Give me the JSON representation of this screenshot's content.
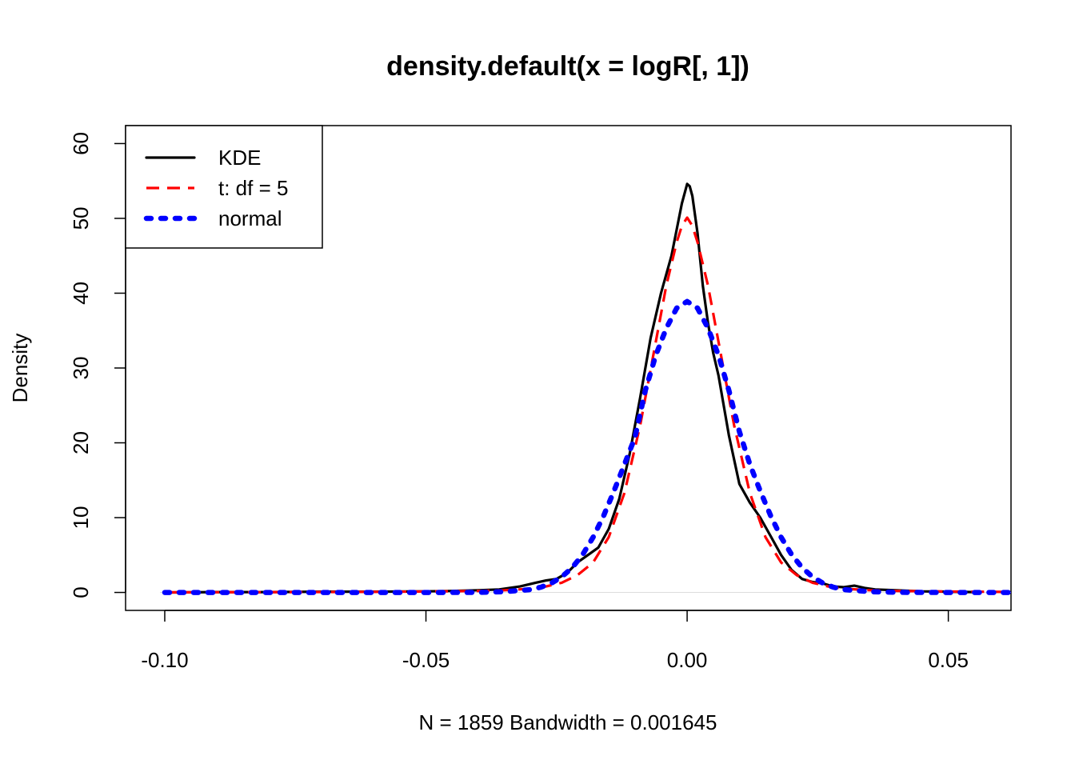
{
  "chart_data": {
    "type": "line",
    "title": "density.default(x = logR[, 1])",
    "xlabel": "N = 1859   Bandwidth = 0.001645",
    "ylabel": "Density",
    "xlim": [
      -0.1075,
      0.062
    ],
    "ylim": [
      -2.4,
      62.4
    ],
    "x_ticks": [
      -0.1,
      -0.05,
      0.0,
      0.05
    ],
    "x_tick_labels": [
      "-0.10",
      "-0.05",
      "0.00",
      "0.05"
    ],
    "y_ticks": [
      0,
      10,
      20,
      30,
      40,
      50,
      60
    ],
    "y_tick_labels": [
      "0",
      "10",
      "20",
      "30",
      "40",
      "50",
      "60"
    ],
    "grid": false,
    "legend_position": "top-left",
    "series": [
      {
        "name": "KDE",
        "color": "#000000",
        "style": "solid",
        "x": [
          -0.1,
          -0.09,
          -0.08,
          -0.07,
          -0.06,
          -0.05,
          -0.045,
          -0.04,
          -0.036,
          -0.032,
          -0.029,
          -0.027,
          -0.025,
          -0.023,
          -0.021,
          -0.019,
          -0.017,
          -0.015,
          -0.013,
          -0.011,
          -0.009,
          -0.007,
          -0.005,
          -0.003,
          -0.002,
          -0.001,
          0.0,
          0.0005,
          0.001,
          0.002,
          0.003,
          0.004,
          0.005,
          0.006,
          0.008,
          0.01,
          0.012,
          0.014,
          0.016,
          0.018,
          0.02,
          0.022,
          0.024,
          0.026,
          0.028,
          0.03,
          0.032,
          0.034,
          0.036,
          0.04,
          0.045,
          0.05,
          0.055
        ],
        "y": [
          0.0,
          0.05,
          0.05,
          0.1,
          0.1,
          0.15,
          0.2,
          0.3,
          0.4,
          0.8,
          1.3,
          1.6,
          1.8,
          2.6,
          4.0,
          5.0,
          6.0,
          8.5,
          12.5,
          18.5,
          26.0,
          34.0,
          40.0,
          45.0,
          48.5,
          52.0,
          54.6,
          54.3,
          53.0,
          48.0,
          41.0,
          36.0,
          32.0,
          29.0,
          21.0,
          14.5,
          12.0,
          10.0,
          7.5,
          5.0,
          3.0,
          1.8,
          1.4,
          1.2,
          0.8,
          0.7,
          0.9,
          0.6,
          0.4,
          0.3,
          0.15,
          0.1,
          0.05
        ]
      },
      {
        "name": "t: df =  5",
        "color": "#ff0000",
        "style": "dashed",
        "x": [
          -0.1,
          -0.08,
          -0.06,
          -0.05,
          -0.04,
          -0.035,
          -0.03,
          -0.027,
          -0.024,
          -0.021,
          -0.018,
          -0.015,
          -0.012,
          -0.009,
          -0.006,
          -0.004,
          -0.002,
          -0.001,
          0.0,
          0.001,
          0.002,
          0.004,
          0.006,
          0.009,
          0.012,
          0.015,
          0.018,
          0.021,
          0.024,
          0.027,
          0.03,
          0.035,
          0.04,
          0.05,
          0.062
        ],
        "y": [
          0.02,
          0.04,
          0.08,
          0.12,
          0.2,
          0.3,
          0.5,
          0.8,
          1.3,
          2.3,
          4.0,
          7.4,
          13.3,
          22.3,
          33.5,
          41.0,
          46.8,
          49.0,
          50.1,
          49.0,
          46.8,
          41.0,
          33.5,
          22.3,
          13.3,
          7.4,
          4.0,
          2.3,
          1.3,
          0.8,
          0.5,
          0.3,
          0.2,
          0.12,
          0.07
        ]
      },
      {
        "name": "normal",
        "color": "#0000ff",
        "style": "dotted",
        "x": [
          -0.1,
          -0.09,
          -0.08,
          -0.07,
          -0.06,
          -0.05,
          -0.04,
          -0.035,
          -0.03,
          -0.028,
          -0.026,
          -0.024,
          -0.022,
          -0.02,
          -0.018,
          -0.016,
          -0.014,
          -0.012,
          -0.01,
          -0.008,
          -0.006,
          -0.004,
          -0.002,
          0.0,
          0.002,
          0.004,
          0.006,
          0.008,
          0.01,
          0.012,
          0.014,
          0.016,
          0.018,
          0.02,
          0.022,
          0.024,
          0.026,
          0.028,
          0.03,
          0.035,
          0.04,
          0.05,
          0.062
        ],
        "y": [
          0.0,
          0.0,
          0.0,
          0.0,
          0.0,
          0.0,
          0.01,
          0.1,
          0.38,
          0.7,
          1.24,
          2.08,
          3.32,
          5.06,
          7.37,
          10.23,
          13.55,
          17.13,
          20.7,
          27.0,
          31.7,
          35.3,
          38.0,
          38.9,
          38.0,
          35.3,
          31.7,
          27.0,
          21.5,
          17.13,
          13.55,
          10.23,
          7.37,
          5.06,
          3.32,
          2.08,
          1.24,
          0.7,
          0.38,
          0.1,
          0.02,
          0.0,
          0.0
        ]
      }
    ]
  }
}
